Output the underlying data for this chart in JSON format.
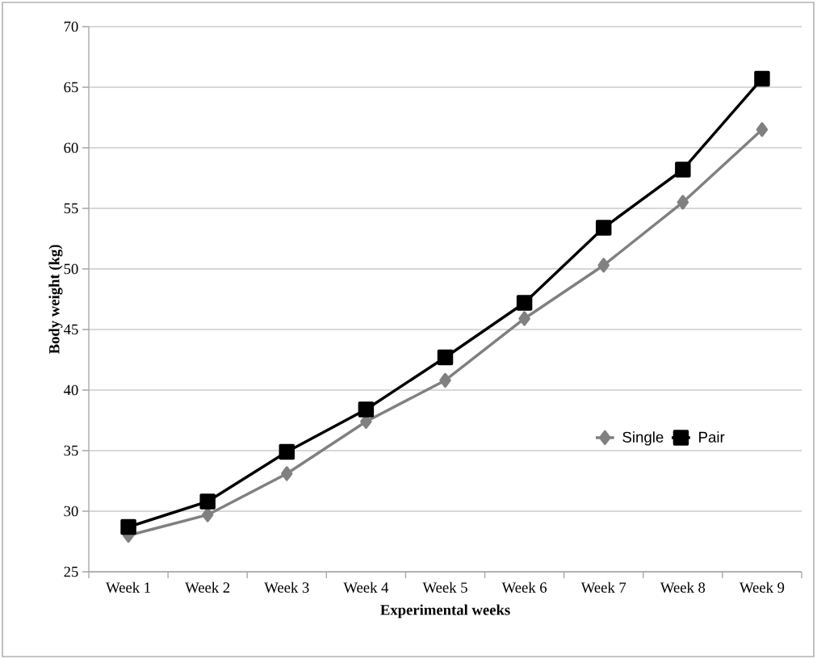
{
  "chart_data": {
    "type": "line",
    "xlabel": "Experimental weeks",
    "ylabel": "Body weight (kg)",
    "categories": [
      "Week 1",
      "Week 2",
      "Week 3",
      "Week 4",
      "Week 5",
      "Week 6",
      "Week 7",
      "Week 8",
      "Week 9"
    ],
    "series": [
      {
        "name": "Single",
        "color": "#808080",
        "marker": "diamond",
        "values": [
          28.0,
          29.7,
          33.1,
          37.4,
          40.8,
          45.9,
          50.3,
          55.5,
          61.5
        ]
      },
      {
        "name": "Pair",
        "color": "#000000",
        "marker": "square",
        "values": [
          28.7,
          30.8,
          34.9,
          38.4,
          42.7,
          47.2,
          53.4,
          58.2,
          65.7
        ]
      }
    ],
    "ylim": [
      25,
      70
    ],
    "yticks": [
      25,
      30,
      35,
      40,
      45,
      50,
      55,
      60,
      65,
      70
    ],
    "grid": "y",
    "legend": "right",
    "line_style": "solid"
  }
}
